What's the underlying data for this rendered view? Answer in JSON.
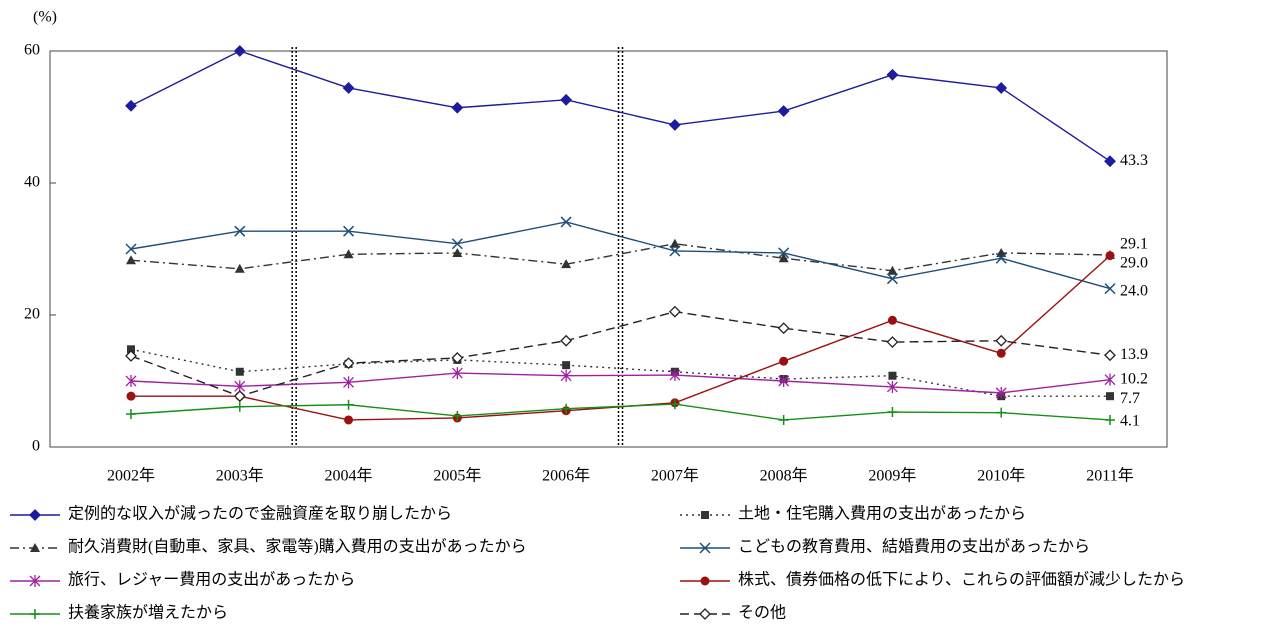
{
  "chart_data": {
    "type": "line",
    "y_label": "(%)",
    "categories": [
      "2002年",
      "2003年",
      "2004年",
      "2005年",
      "2006年",
      "2007年",
      "2008年",
      "2009年",
      "2010年",
      "2011年"
    ],
    "ylim": [
      0,
      60
    ],
    "yticks": [
      0,
      20,
      40,
      60
    ],
    "series": [
      {
        "name": "定例的な収入が減ったので金融資産を取り崩したから",
        "color": "#1c1c9c",
        "dash": "solid",
        "marker": "diamond",
        "values": [
          51.7,
          60.0,
          54.4,
          51.4,
          52.6,
          48.8,
          50.9,
          56.4,
          54.4,
          43.3
        ],
        "value_labels": [
          null,
          null,
          null,
          null,
          null,
          null,
          null,
          null,
          null,
          "43.3"
        ]
      },
      {
        "name": "土地・住宅購入費用の支出があったから",
        "color": "#333333",
        "dash": "dotted",
        "marker": "square",
        "values": [
          14.8,
          11.4,
          12.6,
          13.2,
          12.4,
          11.4,
          10.3,
          10.8,
          7.7,
          7.7
        ],
        "value_labels": [
          null,
          null,
          null,
          null,
          null,
          null,
          null,
          null,
          null,
          "7.7"
        ]
      },
      {
        "name": "耐久消費財(自動車、家具、家電等)購入費用の支出があったから",
        "color": "#333333",
        "dash": "dashdot",
        "marker": "triangle",
        "values": [
          28.3,
          27.0,
          29.2,
          29.4,
          27.7,
          30.8,
          28.6,
          26.7,
          29.4,
          29.1
        ],
        "value_labels": [
          null,
          null,
          null,
          null,
          null,
          null,
          null,
          null,
          null,
          "29.1"
        ]
      },
      {
        "name": "こどもの教育費用、結婚費用の支出があったから",
        "color": "#1f4e79",
        "dash": "solid",
        "marker": "x",
        "values": [
          30.0,
          32.7,
          32.7,
          30.8,
          34.1,
          29.7,
          29.4,
          25.5,
          28.6,
          24.0
        ],
        "value_labels": [
          null,
          null,
          null,
          null,
          null,
          null,
          null,
          null,
          null,
          "24.0"
        ]
      },
      {
        "name": "旅行、レジャー費用の支出があったから",
        "color": "#a020a0",
        "dash": "solid",
        "marker": "star",
        "values": [
          10.0,
          9.2,
          9.8,
          11.2,
          10.8,
          10.9,
          10.0,
          9.1,
          8.2,
          10.2
        ],
        "value_labels": [
          null,
          null,
          null,
          null,
          null,
          null,
          null,
          null,
          null,
          "10.2"
        ]
      },
      {
        "name": "株式、債券価格の低下により、これらの評価額が減少したから",
        "color": "#9b1010",
        "dash": "solid",
        "marker": "circle",
        "values": [
          7.7,
          7.7,
          4.1,
          4.4,
          5.5,
          6.7,
          13.0,
          19.2,
          14.2,
          29.0
        ],
        "value_labels": [
          null,
          null,
          null,
          null,
          null,
          null,
          null,
          null,
          null,
          "29.0"
        ]
      },
      {
        "name": "扶養家族が増えたから",
        "color": "#149014",
        "dash": "solid",
        "marker": "plus",
        "values": [
          5.0,
          6.1,
          6.4,
          4.7,
          5.8,
          6.5,
          4.1,
          5.3,
          5.2,
          4.1
        ],
        "value_labels": [
          null,
          null,
          null,
          null,
          null,
          null,
          null,
          null,
          null,
          "4.1"
        ]
      },
      {
        "name": "その他",
        "color": "#222222",
        "dash": "dashed",
        "marker": "open-diamond",
        "values": [
          13.8,
          7.7,
          12.7,
          13.5,
          16.1,
          20.5,
          18.0,
          15.9,
          16.1,
          13.9
        ],
        "value_labels": [
          null,
          null,
          null,
          null,
          null,
          null,
          null,
          null,
          null,
          "13.9"
        ]
      }
    ]
  }
}
